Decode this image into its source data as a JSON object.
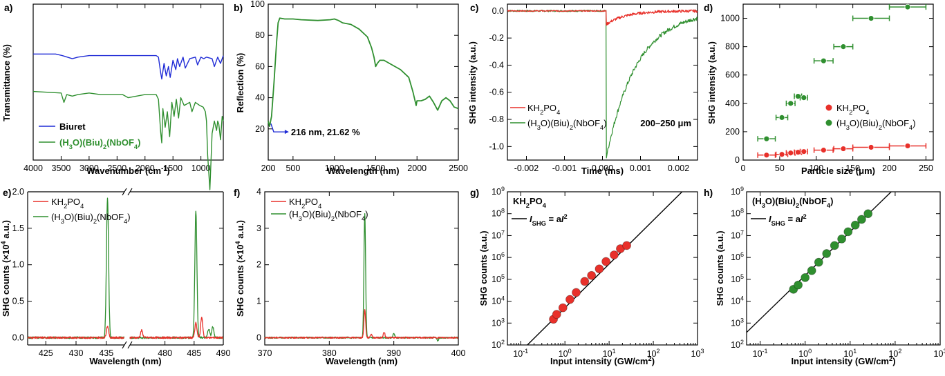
{
  "panels": {
    "a": {
      "label": "a)",
      "xlabel": "Wavenumber (cm",
      "xlabel_sup": "-1",
      "xlabel_end": ")",
      "ylabel": "Transmittance (%)",
      "xticks": [
        "4000",
        "3500",
        "3000",
        "2500",
        "2000",
        "1500",
        "1000"
      ],
      "legend": [
        "Biuret",
        "(H3O)(Biu)2(NbOF4)"
      ]
    },
    "b": {
      "label": "b)",
      "xlabel": "Wavelength (nm)",
      "ylabel": "Reflection (%)",
      "xticks": [
        "200",
        "500",
        "1000",
        "1500",
        "2000",
        "2500"
      ],
      "yticks": [
        "20",
        "40",
        "60",
        "80",
        "100"
      ],
      "annotation": "216 nm, 21.62 %"
    },
    "c": {
      "label": "c)",
      "xlabel": "Time (ms)",
      "ylabel": "SHG intensity (a.u.)",
      "xticks": [
        "-0.002",
        "-0.001",
        "0.000",
        "0.001",
        "0.002"
      ],
      "yticks": [
        "0.0",
        "-0.2",
        "-0.4",
        "-0.6",
        "-0.8",
        "-1.0"
      ],
      "legend": [
        "KH2PO4",
        "(H3O)(Biu)2(NbOF4)"
      ],
      "note": "200–250 μm"
    },
    "d": {
      "label": "d)",
      "xlabel": "Particle size (μm)",
      "ylabel": "SHG intensity (a.u.)",
      "xticks": [
        "0",
        "50",
        "100",
        "150",
        "200",
        "250"
      ],
      "yticks": [
        "0",
        "200",
        "400",
        "600",
        "800",
        "1000"
      ],
      "legend": [
        "KH2PO4",
        "(H3O)(Biu)2(NbOF4)"
      ]
    },
    "e": {
      "label": "e)",
      "xlabel": "Wavelength (nm)",
      "ylabel": "SHG counts (×10",
      "ylabel_sup": "4",
      "ylabel_end": " a.u.)",
      "xticks": [
        "425",
        "430",
        "435",
        "480",
        "485",
        "490"
      ],
      "yticks": [
        "0.0",
        "0.5",
        "1.0",
        "1.5",
        "2.0"
      ],
      "legend": [
        "KH2PO4",
        "(H3O)(Biu)2(NbOF4)"
      ]
    },
    "f": {
      "label": "f)",
      "xlabel": "Wavelength (nm)",
      "ylabel": "SHG counts (×10",
      "ylabel_sup": "4",
      "ylabel_end": " a.u.)",
      "xticks": [
        "370",
        "380",
        "390",
        "400"
      ],
      "yticks": [
        "0",
        "1",
        "2",
        "3",
        "4"
      ],
      "legend": [
        "KH2PO4",
        "(H3O)(Biu)2(NbOF4)"
      ]
    },
    "g": {
      "label": "g)",
      "xlabel": "Input intensity (GW/cm",
      "xlabel_sup": "2",
      "xlabel_end": ")",
      "ylabel": "SHG counts (a.u.)",
      "title": "KH2PO4",
      "fit_label": "ISHG = aI2"
    },
    "h": {
      "label": "h)",
      "xlabel": "Input intensity (GW/cm",
      "xlabel_sup": "2",
      "xlabel_end": ")",
      "ylabel": "SHG counts (a.u.)",
      "title": "(H3O)(Biu)2(NbOF4)",
      "fit_label": "ISHG = aI2"
    }
  },
  "colors": {
    "red": "#e8302a",
    "green": "#2f8f2f",
    "blue": "#1f2bd6",
    "black": "#000000"
  },
  "chart_data": [
    {
      "id": "a",
      "type": "line",
      "xlim": [
        4000,
        600
      ],
      "reversed_x": true,
      "series": [
        {
          "name": "Biuret",
          "color": "#1f2bd6",
          "x": [
            4000,
            3600,
            3480,
            3300,
            3200,
            3000,
            2800,
            2500,
            2300,
            2000,
            1800,
            1760,
            1720,
            1700,
            1660,
            1620,
            1580,
            1550,
            1500,
            1450,
            1420,
            1380,
            1320,
            1280,
            1200,
            1100,
            1060,
            1000,
            950,
            900,
            800,
            760,
            700,
            650,
            600
          ],
          "y": [
            88,
            88,
            87,
            85,
            86,
            87,
            87,
            87,
            87,
            87,
            87,
            86,
            76,
            72,
            82,
            74,
            80,
            73,
            84,
            78,
            85,
            80,
            86,
            79,
            85,
            86,
            81,
            86,
            85,
            86,
            85,
            80,
            86,
            82,
            87
          ]
        },
        {
          "name": "(H3O)(Biu)2(NbOF4)",
          "color": "#2f8f2f",
          "x": [
            4000,
            3500,
            3450,
            3400,
            3300,
            3200,
            3000,
            2800,
            2400,
            2300,
            2000,
            1800,
            1760,
            1720,
            1700,
            1680,
            1640,
            1600,
            1560,
            1520,
            1480,
            1440,
            1400,
            1360,
            1300,
            1200,
            1160,
            1100,
            1020,
            960,
            920,
            900,
            880,
            840,
            800,
            760,
            720,
            700,
            680,
            650,
            620,
            600
          ],
          "y": [
            71,
            70,
            64,
            69,
            68,
            69,
            70,
            69,
            69,
            67,
            69,
            69,
            66,
            45,
            38,
            60,
            48,
            58,
            42,
            64,
            55,
            66,
            54,
            67,
            62,
            64,
            58,
            64,
            62,
            61,
            58,
            52,
            30,
            8,
            44,
            52,
            46,
            52,
            50,
            40,
            55,
            52
          ]
        }
      ]
    },
    {
      "id": "b",
      "type": "line",
      "xlabel": "Wavelength (nm)",
      "ylabel": "Reflection (%)",
      "xlim": [
        200,
        2500
      ],
      "ylim": [
        0,
        100
      ],
      "series": [
        {
          "color": "#2f8f2f",
          "x": [
            200,
            216,
            240,
            270,
            300,
            320,
            340,
            400,
            500,
            600,
            800,
            950,
            1000,
            1050,
            1100,
            1200,
            1300,
            1400,
            1450,
            1480,
            1500,
            1520,
            1550,
            1600,
            1700,
            1800,
            1900,
            1950,
            1990,
            2000,
            2050,
            2100,
            2150,
            2200,
            2250,
            2300,
            2350,
            2400,
            2450,
            2500
          ],
          "y": [
            25,
            21.6,
            28,
            50,
            75,
            88,
            91,
            90.5,
            90.5,
            90,
            89.5,
            90,
            90.5,
            89.5,
            88,
            87,
            84,
            79,
            72,
            66,
            60,
            62,
            64,
            64,
            61,
            58,
            53,
            44,
            35,
            38,
            38,
            39,
            41,
            37,
            32,
            38,
            40,
            38,
            34,
            33
          ]
        }
      ],
      "annotation": {
        "x": 216,
        "y": 21.62,
        "text": "216 nm, 21.62 %"
      }
    },
    {
      "id": "c",
      "type": "line",
      "xlabel": "Time (ms)",
      "ylabel": "SHG intensity (a.u.)",
      "xlim": [
        -0.0025,
        0.0025
      ],
      "ylim": [
        -1.1,
        0.05
      ],
      "series": [
        {
          "name": "KH2PO4",
          "color": "#e8302a",
          "model": "step",
          "t0": 0.0001,
          "drop": -0.1,
          "tau": 0.0005
        },
        {
          "name": "(H3O)(Biu)2(NbOF4)",
          "color": "#2f8f2f",
          "model": "step",
          "t0": 0.0001,
          "drop": -1.08,
          "tau": 0.0008
        }
      ],
      "note": "200–250 μm"
    },
    {
      "id": "d",
      "type": "scatter",
      "xlabel": "Particle size (μm)",
      "ylabel": "SHG intensity (a.u.)",
      "xlim": [
        0,
        260
      ],
      "ylim": [
        0,
        1100
      ],
      "series": [
        {
          "name": "KH2PO4",
          "color": "#e8302a",
          "x": [
            32,
            53,
            65,
            75,
            83,
            110,
            137,
            175,
            225
          ],
          "y": [
            35,
            40,
            50,
            55,
            60,
            70,
            80,
            90,
            100
          ],
          "xerr": [
            12,
            8,
            6,
            5,
            5,
            13,
            13,
            25,
            25
          ]
        },
        {
          "name": "(H3O)(Biu)2(NbOF4)",
          "color": "#2f8f2f",
          "x": [
            32,
            53,
            65,
            75,
            83,
            110,
            137,
            175,
            225
          ],
          "y": [
            150,
            300,
            400,
            450,
            440,
            700,
            800,
            1000,
            1080
          ],
          "xerr": [
            12,
            8,
            6,
            5,
            5,
            13,
            13,
            25,
            25
          ]
        }
      ]
    },
    {
      "id": "e",
      "type": "line",
      "xlabel": "Wavelength (nm)",
      "ylabel": "SHG counts (×10^4 a.u.)",
      "xlim": [
        [
          422,
          438
        ],
        [
          474,
          490
        ]
      ],
      "ylim": [
        -0.1,
        2.0
      ],
      "series": [
        {
          "name": "KH2PO4",
          "color": "#e8302a",
          "peaks": [
            [
              435.2,
              0.16
            ],
            [
              476,
              0.1
            ],
            [
              485.3,
              0.2
            ],
            [
              486.3,
              0.28
            ]
          ]
        },
        {
          "name": "(H3O)(Biu)2(NbOF4)",
          "color": "#2f8f2f",
          "peaks": [
            [
              435.2,
              1.92
            ],
            [
              485.3,
              1.74
            ],
            [
              487.5,
              0.12
            ],
            [
              488.2,
              0.15
            ]
          ]
        }
      ]
    },
    {
      "id": "f",
      "type": "line",
      "xlabel": "Wavelength (nm)",
      "ylabel": "SHG counts (×10^4 a.u.)",
      "xlim": [
        370,
        400
      ],
      "ylim": [
        -0.2,
        4.0
      ],
      "series": [
        {
          "name": "KH2PO4",
          "color": "#e8302a",
          "peaks": [
            [
              385.5,
              0.78
            ],
            [
              386.5,
              0.1
            ],
            [
              388.5,
              0.15
            ]
          ]
        },
        {
          "name": "(H3O)(Biu)2(NbOF4)",
          "color": "#2f8f2f",
          "peaks": [
            [
              385.5,
              3.42
            ],
            [
              390,
              0.12
            ],
            [
              396.8,
              -0.08
            ]
          ]
        }
      ]
    },
    {
      "id": "g",
      "type": "scatter",
      "xlabel": "Input intensity (GW/cm^2)",
      "ylabel": "SHG counts (a.u.)",
      "xscale": "log",
      "yscale": "log",
      "xlim": [
        0.05,
        1000
      ],
      "ylim": [
        100,
        1000000000
      ],
      "series": [
        {
          "name": "KH2PO4",
          "color": "#e8302a",
          "x": [
            0.55,
            0.65,
            0.9,
            1.3,
            1.8,
            2.8,
            4,
            6,
            8.5,
            13,
            18,
            25
          ],
          "y": [
            1500,
            2500,
            5000,
            12000,
            25000,
            80000,
            150000,
            300000,
            650000,
            1300000,
            2500000,
            3500000
          ]
        }
      ],
      "fit": {
        "a": 5000,
        "power": 2
      }
    },
    {
      "id": "h",
      "type": "scatter",
      "xlabel": "Input intensity (GW/cm^2)",
      "ylabel": "SHG counts (a.u.)",
      "xscale": "log",
      "yscale": "log",
      "xlim": [
        0.05,
        1000
      ],
      "ylim": [
        100,
        1000000000
      ],
      "series": [
        {
          "name": "(H3O)(Biu)2(NbOF4)",
          "color": "#2f8f2f",
          "x": [
            0.55,
            0.7,
            1,
            1.4,
            2,
            3,
            4.5,
            6.5,
            9,
            13,
            18,
            25
          ],
          "y": [
            35000,
            55000,
            120000,
            250000,
            600000,
            1500000,
            3500000,
            7000000,
            15000000,
            30000000,
            55000000,
            100000000
          ]
        }
      ],
      "fit": {
        "a": 150000,
        "power": 2
      }
    }
  ]
}
